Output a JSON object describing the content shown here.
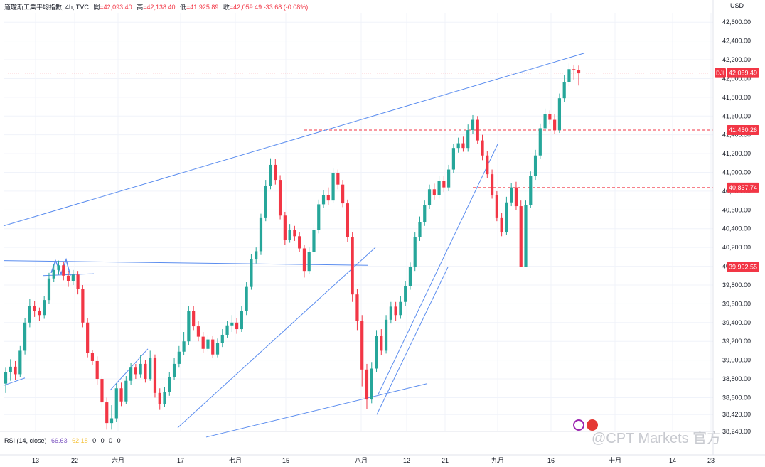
{
  "header": {
    "symbol": "道瓊斯工業平均指數, 4h, TVC",
    "open_label": "開",
    "open": "=42,093.40",
    "high_label": "高",
    "high": "=42,138.40",
    "low_label": "低",
    "low": "=41,925.89",
    "close_label": "收",
    "close": "=42,059.49",
    "change": "-33.68 (-0.08%)"
  },
  "currency": "USD",
  "watermark": "@CPT Markets 官方",
  "rsi": {
    "label": "RSI (14, close)",
    "value": "66.63",
    "ma": "62.18",
    "extra": "0 0 0 0"
  },
  "colors": {
    "up": "#26a69a",
    "down": "#f23645",
    "trend": "#5b8def",
    "level": "#f23645"
  },
  "chart_data": {
    "type": "candlestick",
    "ylim": [
      38240,
      42700
    ],
    "y_ticks": [
      "42,600.00",
      "42,400.00",
      "42,200.00",
      "42,000.00",
      "41,800.00",
      "41,600.00",
      "41,400.00",
      "41,200.00",
      "41,000.00",
      "40,800.00",
      "40,600.00",
      "40,400.00",
      "40,200.00",
      "40,000.00",
      "39,800.00",
      "39,600.00",
      "39,400.00",
      "39,200.00",
      "39,000.00",
      "38,800.00",
      "38,600.00",
      "38,420.00",
      "38,240.00"
    ],
    "x_ticks": [
      "13",
      "22",
      "六月",
      "17",
      "七月",
      "15",
      "八月",
      "12",
      "21",
      "九月",
      "16",
      "十月",
      "14",
      "23"
    ],
    "price_labels": [
      {
        "text": "DJI",
        "value": "42,059.49",
        "price": 42059.49
      },
      {
        "text": "",
        "value": "41,450.26",
        "price": 41450.26
      },
      {
        "text": "",
        "value": "40,837.74",
        "price": 40837.74
      },
      {
        "text": "",
        "value": "39,992.55",
        "price": 39992.55
      }
    ],
    "candles": [
      [
        38750,
        38870,
        38650,
        38920
      ],
      [
        38870,
        38930,
        38780,
        39010
      ],
      [
        38930,
        38850,
        38790,
        38990
      ],
      [
        38850,
        39100,
        38820,
        39150
      ],
      [
        39100,
        39400,
        39060,
        39450
      ],
      [
        39400,
        39580,
        39350,
        39650
      ],
      [
        39580,
        39520,
        39460,
        39630
      ],
      [
        39520,
        39480,
        39420,
        39560
      ],
      [
        39480,
        39640,
        39440,
        39680
      ],
      [
        39640,
        39870,
        39600,
        39930
      ],
      [
        39870,
        39960,
        39830,
        40020
      ],
      [
        39960,
        40010,
        39910,
        40060
      ],
      [
        40010,
        39900,
        39850,
        40050
      ],
      [
        39900,
        39840,
        39780,
        39950
      ],
      [
        39840,
        39910,
        39800,
        39960
      ],
      [
        39910,
        39760,
        39700,
        39950
      ],
      [
        39760,
        39400,
        39350,
        39800
      ],
      [
        39400,
        39080,
        39030,
        39450
      ],
      [
        39080,
        38990,
        38950,
        39110
      ],
      [
        38990,
        38800,
        38740,
        39040
      ],
      [
        38800,
        38550,
        38480,
        38830
      ],
      [
        38550,
        38330,
        38260,
        38600
      ],
      [
        38330,
        38380,
        38260,
        38520
      ],
      [
        38380,
        38700,
        38340,
        38750
      ],
      [
        38700,
        38560,
        38510,
        38760
      ],
      [
        38560,
        38780,
        38530,
        38830
      ],
      [
        38780,
        38920,
        38740,
        38970
      ],
      [
        38920,
        38850,
        38800,
        38960
      ],
      [
        38850,
        38960,
        38810,
        39050
      ],
      [
        38960,
        38800,
        38760,
        39000
      ],
      [
        38800,
        39020,
        38780,
        39100
      ],
      [
        39020,
        38650,
        38600,
        39060
      ],
      [
        38650,
        38530,
        38470,
        38700
      ],
      [
        38530,
        38660,
        38500,
        38710
      ],
      [
        38660,
        38820,
        38620,
        38870
      ],
      [
        38820,
        38960,
        38790,
        39020
      ],
      [
        38960,
        39090,
        38920,
        39150
      ],
      [
        39090,
        39200,
        39050,
        39300
      ],
      [
        39200,
        39520,
        39160,
        39580
      ],
      [
        39520,
        39360,
        39320,
        39580
      ],
      [
        39360,
        39250,
        39200,
        39420
      ],
      [
        39250,
        39120,
        39080,
        39300
      ],
      [
        39120,
        39220,
        39090,
        39270
      ],
      [
        39220,
        39060,
        39020,
        39260
      ],
      [
        39060,
        39180,
        39030,
        39230
      ],
      [
        39180,
        39270,
        39140,
        39330
      ],
      [
        39270,
        39370,
        39240,
        39420
      ],
      [
        39370,
        39400,
        39300,
        39480
      ],
      [
        39400,
        39330,
        39280,
        39450
      ],
      [
        39330,
        39520,
        39300,
        39580
      ],
      [
        39520,
        39780,
        39480,
        39830
      ],
      [
        39780,
        40080,
        39750,
        40130
      ],
      [
        40080,
        40160,
        40030,
        40200
      ],
      [
        40160,
        40520,
        40120,
        40560
      ],
      [
        40520,
        40860,
        40480,
        40920
      ],
      [
        40860,
        41080,
        40820,
        41150
      ],
      [
        41080,
        40920,
        40870,
        41140
      ],
      [
        40920,
        40540,
        40500,
        40970
      ],
      [
        40540,
        40280,
        40230,
        40580
      ],
      [
        40280,
        40390,
        40250,
        40450
      ],
      [
        40390,
        40320,
        40270,
        40430
      ],
      [
        40320,
        40190,
        40150,
        40360
      ],
      [
        40190,
        39950,
        39880,
        40230
      ],
      [
        39950,
        40150,
        39920,
        40200
      ],
      [
        40150,
        40390,
        40110,
        40450
      ],
      [
        40390,
        40660,
        40350,
        40710
      ],
      [
        40660,
        40760,
        40620,
        40810
      ],
      [
        40760,
        40700,
        40650,
        40840
      ],
      [
        40700,
        40990,
        40670,
        41040
      ],
      [
        40990,
        40870,
        40820,
        41030
      ],
      [
        40870,
        40670,
        40630,
        40920
      ],
      [
        40670,
        40310,
        40260,
        40710
      ],
      [
        40310,
        39700,
        39620,
        40360
      ],
      [
        39700,
        39420,
        39320,
        39760
      ],
      [
        39420,
        38900,
        38720,
        39480
      ],
      [
        38900,
        38580,
        38480,
        38960
      ],
      [
        38580,
        38910,
        38540,
        38980
      ],
      [
        38910,
        39260,
        38870,
        39320
      ],
      [
        39260,
        39100,
        39050,
        39330
      ],
      [
        39100,
        39430,
        39070,
        39480
      ],
      [
        39430,
        39570,
        39390,
        39620
      ],
      [
        39570,
        39480,
        39420,
        39620
      ],
      [
        39480,
        39620,
        39440,
        39680
      ],
      [
        39620,
        39790,
        39580,
        39840
      ],
      [
        39790,
        39990,
        39750,
        40040
      ],
      [
        39990,
        40310,
        39950,
        40360
      ],
      [
        40310,
        40470,
        40270,
        40530
      ],
      [
        40470,
        40650,
        40430,
        40700
      ],
      [
        40650,
        40820,
        40610,
        40870
      ],
      [
        40820,
        40760,
        40710,
        40880
      ],
      [
        40760,
        40910,
        40720,
        40960
      ],
      [
        40910,
        40840,
        40790,
        40960
      ],
      [
        40840,
        41030,
        40800,
        41080
      ],
      [
        41030,
        41260,
        40990,
        41300
      ],
      [
        41260,
        41310,
        41210,
        41370
      ],
      [
        41310,
        41260,
        41220,
        41380
      ],
      [
        41260,
        41450,
        41220,
        41510
      ],
      [
        41450,
        41560,
        41410,
        41610
      ],
      [
        41560,
        41340,
        41300,
        41600
      ],
      [
        41340,
        41180,
        41130,
        41400
      ],
      [
        41180,
        40980,
        40940,
        41230
      ],
      [
        40980,
        40760,
        40720,
        41030
      ],
      [
        40760,
        40520,
        40480,
        40800
      ],
      [
        40520,
        40360,
        40320,
        40570
      ],
      [
        40360,
        40680,
        40330,
        40740
      ],
      [
        40680,
        40840,
        40640,
        40890
      ],
      [
        40840,
        40640,
        40600,
        40900
      ],
      [
        40640,
        39990,
        39990,
        40700
      ],
      [
        39990,
        40650,
        39990,
        40700
      ],
      [
        40650,
        40960,
        40620,
        41010
      ],
      [
        40960,
        41180,
        40920,
        41240
      ],
      [
        41180,
        41470,
        41140,
        41520
      ],
      [
        41470,
        41620,
        41430,
        41680
      ],
      [
        41620,
        41560,
        41510,
        41660
      ],
      [
        41560,
        41450,
        41410,
        41620
      ],
      [
        41450,
        41790,
        41420,
        41840
      ],
      [
        41790,
        41960,
        41750,
        42040
      ],
      [
        41960,
        42100,
        41920,
        42160
      ],
      [
        42100,
        42093,
        41990,
        42140
      ],
      [
        42093,
        42059,
        41926,
        42138
      ]
    ],
    "trendlines": [
      {
        "from": [
          "13",
          40430
        ],
        "to": [
          "十月",
          42270
        ]
      },
      {
        "from": [
          "13",
          40060
        ],
        "to": [
          "八月",
          40010
        ]
      },
      {
        "from": [
          "六月",
          38280
        ],
        "to": [
          "八月",
          40200
        ]
      },
      {
        "from": [
          "十月",
          38180
        ],
        "to": [
          "八月",
          38750
        ]
      }
    ]
  }
}
